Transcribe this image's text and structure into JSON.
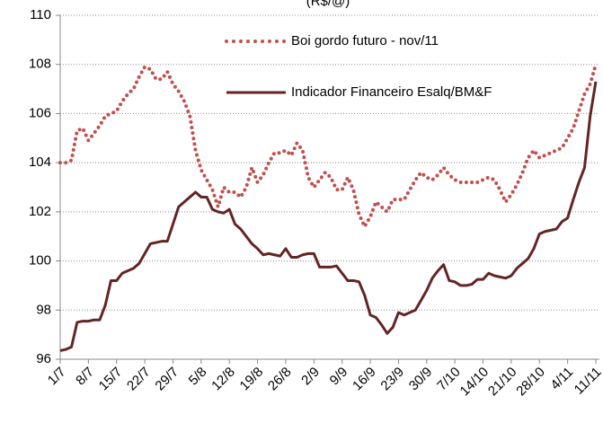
{
  "chart_data": {
    "type": "line",
    "title": "(R$/@)",
    "categories": [
      "1/7",
      null,
      null,
      null,
      null,
      "8/7",
      null,
      null,
      null,
      null,
      "15/7",
      null,
      null,
      null,
      null,
      "22/7",
      null,
      null,
      null,
      null,
      "29/7",
      null,
      null,
      null,
      null,
      "5/8",
      null,
      null,
      null,
      null,
      "12/8",
      null,
      null,
      null,
      null,
      "19/8",
      null,
      null,
      null,
      null,
      "26/8",
      null,
      null,
      null,
      null,
      "2/9",
      null,
      null,
      null,
      null,
      "9/9",
      null,
      null,
      null,
      null,
      "16/9",
      null,
      null,
      null,
      null,
      "23/9",
      null,
      null,
      null,
      null,
      "30/9",
      null,
      null,
      null,
      null,
      "7/10",
      null,
      null,
      null,
      null,
      "14/10",
      null,
      null,
      null,
      null,
      "21/10",
      null,
      null,
      null,
      null,
      "28/10",
      null,
      null,
      null,
      null,
      "4/11",
      null,
      null,
      null,
      null,
      "11/11"
    ],
    "series": [
      {
        "name": "Boi gordo futuro - nov/11",
        "color": "#c0504d",
        "dotted": true,
        "values": [
          104.0,
          104.0,
          104.1,
          105.3,
          105.4,
          104.9,
          105.2,
          105.5,
          105.9,
          106.0,
          106.1,
          106.5,
          106.8,
          107.0,
          107.5,
          107.9,
          107.8,
          107.4,
          107.4,
          107.7,
          107.2,
          106.9,
          106.5,
          105.9,
          104.5,
          103.7,
          103.3,
          102.9,
          102.2,
          103.0,
          102.8,
          102.8,
          102.6,
          103.0,
          103.8,
          103.2,
          103.5,
          104.0,
          104.4,
          104.4,
          104.5,
          104.3,
          104.8,
          104.5,
          103.4,
          103.0,
          103.3,
          103.6,
          103.4,
          102.9,
          102.9,
          103.4,
          102.9,
          101.9,
          101.4,
          101.8,
          102.4,
          102.2,
          102.0,
          102.5,
          102.5,
          102.5,
          102.9,
          103.3,
          103.6,
          103.4,
          103.3,
          103.5,
          103.8,
          103.5,
          103.3,
          103.2,
          103.2,
          103.2,
          103.2,
          103.3,
          103.4,
          103.3,
          102.9,
          102.4,
          102.7,
          103.1,
          103.6,
          104.2,
          104.5,
          104.2,
          104.3,
          104.4,
          104.5,
          104.6,
          105.0,
          105.4,
          106.1,
          106.8,
          107.2,
          108.0
        ]
      },
      {
        "name": "Indicador Financeiro Esalq/BM&F",
        "color": "#632523",
        "dotted": false,
        "values": [
          96.35,
          96.4,
          96.5,
          97.5,
          97.55,
          97.55,
          97.6,
          97.6,
          98.2,
          99.2,
          99.2,
          99.5,
          99.6,
          99.7,
          99.9,
          100.3,
          100.7,
          100.75,
          100.8,
          100.8,
          101.5,
          102.2,
          102.4,
          102.6,
          102.8,
          102.6,
          102.6,
          102.1,
          102.0,
          101.95,
          102.1,
          101.5,
          101.3,
          101.0,
          100.7,
          100.5,
          100.25,
          100.3,
          100.25,
          100.2,
          100.5,
          100.15,
          100.15,
          100.25,
          100.3,
          100.3,
          99.75,
          99.75,
          99.75,
          99.8,
          99.5,
          99.2,
          99.2,
          99.15,
          98.6,
          97.8,
          97.7,
          97.4,
          97.05,
          97.3,
          97.9,
          97.8,
          97.9,
          98.0,
          98.4,
          98.8,
          99.3,
          99.6,
          99.85,
          99.2,
          99.15,
          99.0,
          99.0,
          99.05,
          99.25,
          99.25,
          99.5,
          99.4,
          99.35,
          99.3,
          99.4,
          99.7,
          99.9,
          100.1,
          100.5,
          101.1,
          101.2,
          101.25,
          101.3,
          101.6,
          101.75,
          102.5,
          103.2,
          103.8,
          105.9,
          107.3
        ]
      }
    ],
    "ylim": [
      96,
      110
    ],
    "yticks": [
      96,
      98,
      100,
      102,
      104,
      106,
      108,
      110
    ],
    "grid": true
  }
}
